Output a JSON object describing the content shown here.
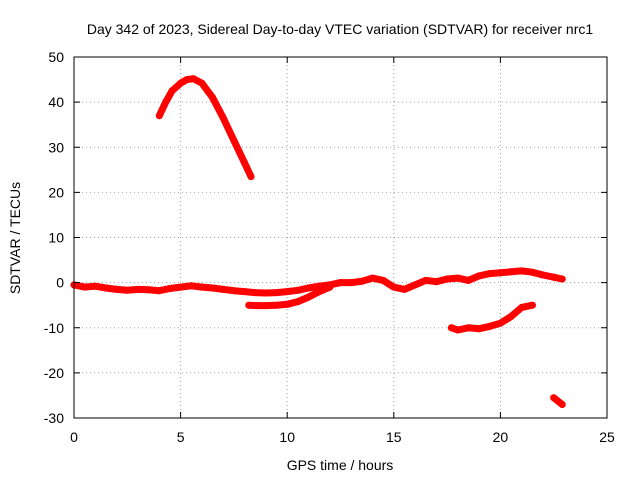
{
  "chart_data": {
    "type": "line",
    "title": "Day 342 of 2023, Sidereal Day-to-day VTEC variation (SDTVAR) for receiver nrc1",
    "xlabel": "GPS time / hours",
    "ylabel": "SDTVAR / TECUs",
    "xlim": [
      0,
      25
    ],
    "ylim": [
      -30,
      50
    ],
    "xticks": [
      0,
      5,
      10,
      15,
      20,
      25
    ],
    "yticks": [
      -30,
      -20,
      -10,
      0,
      10,
      20,
      30,
      40,
      50
    ],
    "grid": true,
    "colors": {
      "series": "#ff0000",
      "grid": "#a0a0a0",
      "axis": "#000000"
    },
    "series": [
      {
        "name": "main-trace",
        "x": [
          0,
          0.5,
          1,
          1.5,
          2,
          2.5,
          3,
          3.5,
          4,
          4.5,
          5,
          5.5,
          6,
          6.5,
          7,
          7.5,
          8,
          8.5,
          9,
          9.5,
          10,
          10.5,
          11,
          11.5,
          12,
          12.5,
          13,
          13.5,
          14,
          14.5,
          15,
          15.5,
          16,
          16.5,
          17,
          17.5,
          18,
          18.5,
          19,
          19.5,
          20,
          20.5,
          21,
          21.5,
          22,
          22.5,
          22.9
        ],
        "values": [
          -0.5,
          -1,
          -0.8,
          -1.2,
          -1.5,
          -1.7,
          -1.5,
          -1.6,
          -1.8,
          -1.3,
          -1,
          -0.7,
          -1,
          -1.2,
          -1.5,
          -1.8,
          -2,
          -2.2,
          -2.3,
          -2.2,
          -2,
          -1.7,
          -1.2,
          -0.8,
          -0.5,
          0,
          0,
          0.3,
          1,
          0.5,
          -1,
          -1.5,
          -0.5,
          0.5,
          0.2,
          0.8,
          1,
          0.5,
          1.5,
          2,
          2.2,
          2.4,
          2.6,
          2.3,
          1.7,
          1.2,
          0.8
        ]
      },
      {
        "name": "arc-segment",
        "x": [
          4,
          4.3,
          4.6,
          5,
          5.3,
          5.6,
          6,
          6.5,
          7,
          7.5,
          8,
          8.3
        ],
        "values": [
          37,
          40,
          42.5,
          44.2,
          45,
          45.2,
          44.2,
          41,
          36.5,
          31.5,
          26.5,
          23.5
        ]
      },
      {
        "name": "low-segment",
        "x": [
          8.2,
          8.6,
          9,
          9.5,
          10,
          10.5,
          11,
          11.5,
          12
        ],
        "values": [
          -5,
          -5.1,
          -5.1,
          -5,
          -4.8,
          -4.2,
          -3.2,
          -2,
          -1
        ]
      },
      {
        "name": "negative-segment",
        "x": [
          17.7,
          18,
          18.5,
          19,
          19.5,
          20,
          20.5,
          21,
          21.5
        ],
        "values": [
          -10,
          -10.5,
          -10,
          -10.2,
          -9.7,
          -9,
          -7.5,
          -5.5,
          -5
        ]
      },
      {
        "name": "tail-segment",
        "x": [
          22.5,
          22.9
        ],
        "values": [
          -25.5,
          -27
        ]
      }
    ]
  }
}
